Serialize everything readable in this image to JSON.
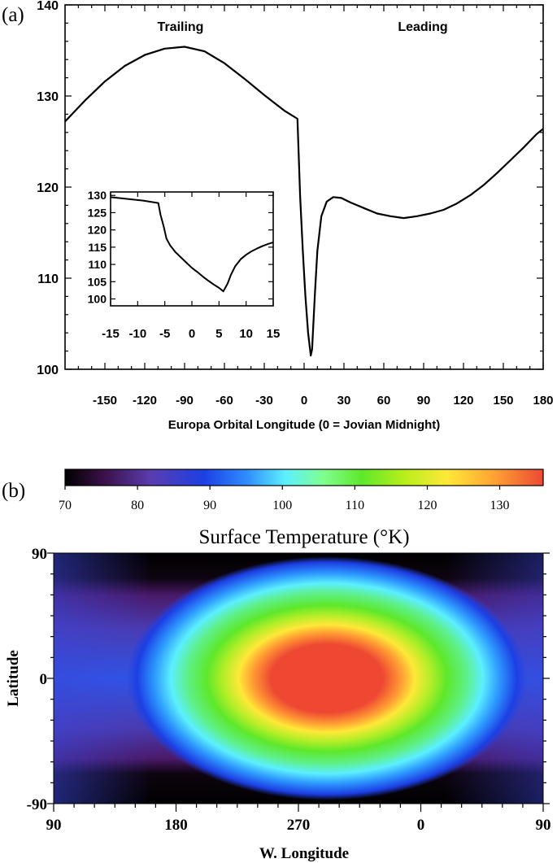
{
  "panel_a": {
    "panel_label": "(a)",
    "chart_data": {
      "type": "line",
      "xlabel": "Europa Orbital Longitude (0 = Jovian Midnight)",
      "xlim": [
        -180,
        180
      ],
      "ylim": [
        100,
        140
      ],
      "xticks": [
        "-150",
        "-120",
        "-90",
        "-60",
        "-30",
        "0",
        "30",
        "60",
        "90",
        "120",
        "150",
        "180"
      ],
      "xtick_values": [
        -150,
        -120,
        -90,
        -60,
        -30,
        0,
        30,
        60,
        90,
        120,
        150,
        180
      ],
      "yticks": [
        "100",
        "110",
        "120",
        "130",
        "140"
      ],
      "ytick_values": [
        100,
        110,
        120,
        130,
        140
      ],
      "annotations": [
        "Trailing",
        "Leading"
      ],
      "x": [
        -180,
        -165,
        -150,
        -135,
        -120,
        -105,
        -90,
        -75,
        -60,
        -45,
        -30,
        -15,
        -5,
        -3,
        -1,
        1,
        3,
        5,
        6,
        8,
        10,
        13,
        17,
        22,
        28,
        35,
        45,
        55,
        65,
        75,
        85,
        95,
        105,
        115,
        125,
        135,
        145,
        155,
        165,
        175,
        180
      ],
      "y": [
        127.2,
        129.5,
        131.6,
        133.3,
        134.5,
        135.2,
        135.4,
        134.9,
        133.6,
        131.9,
        130.1,
        128.4,
        127.5,
        119.0,
        113.0,
        108.0,
        104.0,
        101.5,
        102.2,
        108.0,
        113.0,
        116.8,
        118.4,
        118.9,
        118.8,
        118.3,
        117.7,
        117.1,
        116.8,
        116.6,
        116.8,
        117.1,
        117.5,
        118.2,
        119.1,
        120.2,
        121.5,
        122.9,
        124.3,
        125.8,
        126.4
      ]
    },
    "inset_chart_data": {
      "type": "line",
      "xlim": [
        -15,
        15
      ],
      "ylim": [
        98,
        131
      ],
      "xticks": [
        "-15",
        "-10",
        "-5",
        "0",
        "5",
        "10",
        "15"
      ],
      "xtick_values": [
        -15,
        -10,
        -5,
        0,
        5,
        10,
        15
      ],
      "yticks": [
        "100",
        "105",
        "110",
        "115",
        "120",
        "125",
        "130"
      ],
      "ytick_values": [
        100,
        105,
        110,
        115,
        120,
        125,
        130
      ],
      "x": [
        -15,
        -12,
        -9,
        -6.2,
        -5.8,
        -5.2,
        -4.7,
        -4,
        -3,
        -2,
        -1,
        0,
        1,
        2,
        3,
        4,
        5,
        5.8,
        6.6,
        7.2,
        8,
        9,
        10,
        11,
        12,
        13,
        14,
        15
      ],
      "y": [
        129.5,
        129.0,
        128.5,
        127.8,
        124.5,
        121.0,
        117.5,
        115.5,
        113.5,
        112.0,
        110.5,
        109.0,
        107.8,
        106.5,
        105.3,
        104.2,
        103.2,
        102.2,
        104.5,
        107.0,
        109.5,
        111.5,
        112.8,
        113.8,
        114.6,
        115.3,
        115.9,
        116.4
      ]
    }
  },
  "panel_b": {
    "panel_label": "(b)",
    "colorbar": {
      "ticks": [
        "70",
        "80",
        "90",
        "100",
        "110",
        "120",
        "130"
      ],
      "tick_values": [
        70,
        80,
        90,
        100,
        110,
        120,
        130
      ],
      "range": [
        70,
        136
      ]
    },
    "title": "Surface Temperature (°K)",
    "chart_data": {
      "type": "heatmap",
      "xlabel": "W. Longitude",
      "ylabel": "Latitude",
      "xticks": [
        "90",
        "180",
        "270",
        "0",
        "90"
      ],
      "yticks": [
        "90",
        "0",
        "-90"
      ],
      "max_temperature": 133,
      "hotspot_longitude": 285,
      "hotspot_latitude": 0
    }
  },
  "colors": {
    "line": "#000000",
    "colorbar_stops": [
      "#000000",
      "#3a1048",
      "#5a3db0",
      "#1c3fe4",
      "#2f8cff",
      "#5cefff",
      "#80ff90",
      "#5ee82a",
      "#b8ef1a",
      "#ffe838",
      "#ffa833",
      "#ee4833"
    ]
  }
}
